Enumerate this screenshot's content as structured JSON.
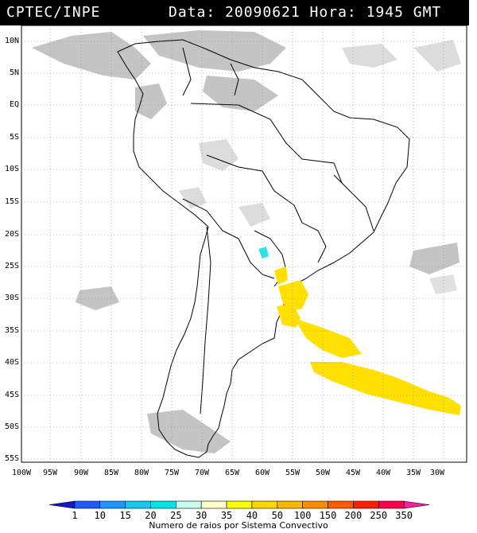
{
  "header": {
    "source": "CPTEC/INPE",
    "datetime": "Data: 20090621 Hora: 1945 GMT"
  },
  "axes": {
    "lat_labels": [
      "10N",
      "5N",
      "EQ",
      "5S",
      "10S",
      "15S",
      "20S",
      "25S",
      "30S",
      "35S",
      "40S",
      "45S",
      "50S",
      "55S"
    ],
    "lon_labels": [
      "100W",
      "95W",
      "90W",
      "85W",
      "80W",
      "75W",
      "70W",
      "65W",
      "60W",
      "55W",
      "50W",
      "45W",
      "40W",
      "35W",
      "30W"
    ]
  },
  "colorbar": {
    "labels": [
      "1",
      "10",
      "15",
      "20",
      "25",
      "30",
      "35",
      "40",
      "50",
      "100",
      "150",
      "200",
      "250",
      "350"
    ],
    "colors": [
      "#1414c8",
      "#1e5aff",
      "#1e96ff",
      "#14c8f0",
      "#00e6e6",
      "#c8fff0",
      "#ffffcc",
      "#ffff00",
      "#ffd700",
      "#ffb400",
      "#ff8c00",
      "#ff5a00",
      "#ff1e00",
      "#ff0050",
      "#ff1ea0"
    ],
    "caption": "Numero de raios por Sistema Convectivo"
  },
  "map_colors": {
    "cloud": "#bdbdbd",
    "lightning_high": "#ffe000",
    "lightning_low": "#28e6f0",
    "grid": "#888888"
  }
}
